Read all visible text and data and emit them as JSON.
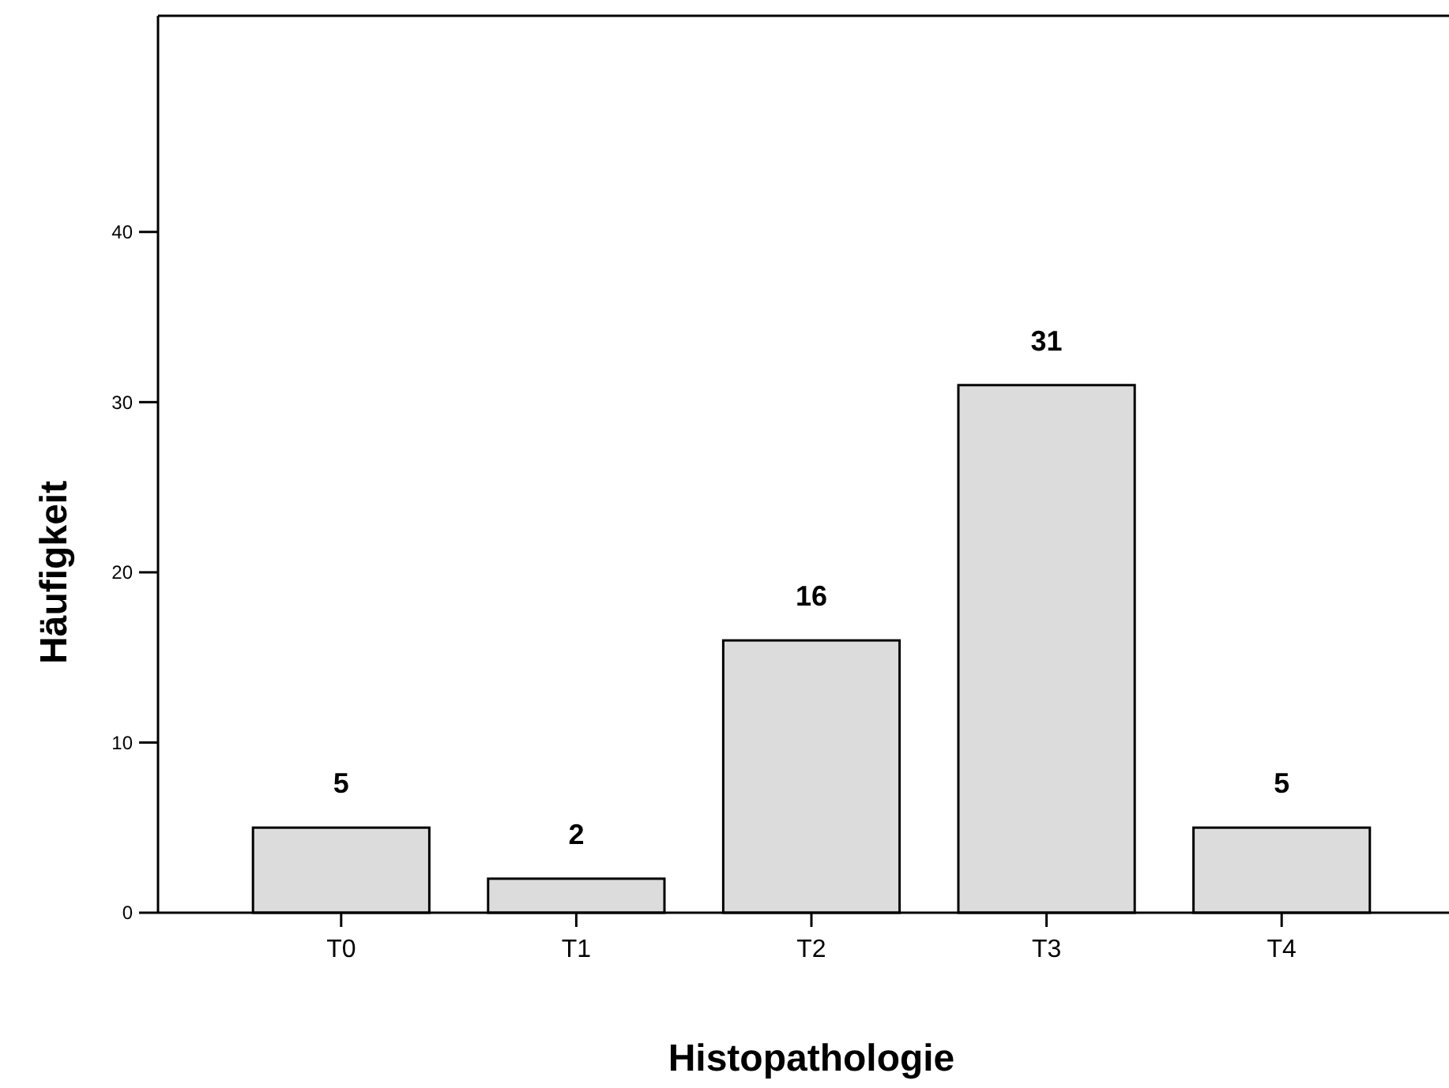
{
  "chart_data": {
    "type": "bar",
    "xlabel": "Histopathologie",
    "ylabel": "Häufigkeit",
    "categories": [
      "T0",
      "T1",
      "T2",
      "T3",
      "T4"
    ],
    "values": [
      5,
      2,
      16,
      31,
      5
    ],
    "color": "#dcdcdc",
    "ylim": [
      0,
      52.7
    ],
    "yticks": [
      0,
      10,
      20,
      30,
      40
    ],
    "grid": false,
    "data_labels": true
  }
}
